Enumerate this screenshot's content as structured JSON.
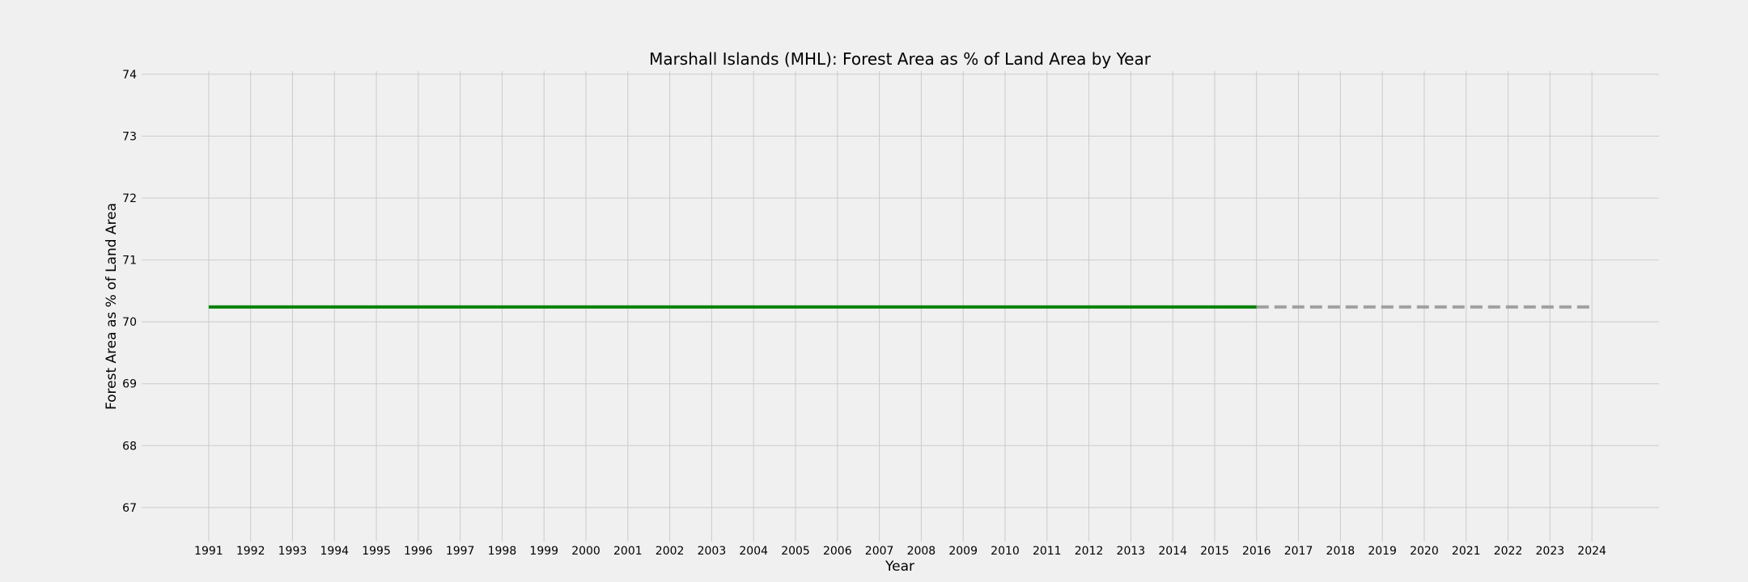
{
  "chart_data": {
    "type": "line",
    "title": "Marshall Islands (MHL): Forest Area as % of Land Area by Year",
    "xlabel": "Year",
    "ylabel": "Forest Area as % of Land Area",
    "xlim": [
      1989.4,
      2025.6
    ],
    "ylim": [
      66.45,
      74.05
    ],
    "x_ticks": [
      1991,
      1992,
      1993,
      1994,
      1995,
      1996,
      1997,
      1998,
      1999,
      2000,
      2001,
      2002,
      2003,
      2004,
      2005,
      2006,
      2007,
      2008,
      2009,
      2010,
      2011,
      2012,
      2013,
      2014,
      2015,
      2016,
      2017,
      2018,
      2019,
      2020,
      2021,
      2022,
      2023,
      2024
    ],
    "y_ticks": [
      67,
      68,
      69,
      70,
      71,
      72,
      73,
      74
    ],
    "grid": true,
    "series": [
      {
        "style": "solid",
        "color": "#008000",
        "x": [
          1991,
          1992,
          1993,
          1994,
          1995,
          1996,
          1997,
          1998,
          1999,
          2000,
          2001,
          2002,
          2003,
          2004,
          2005,
          2006,
          2007,
          2008,
          2009,
          2010,
          2011,
          2012,
          2013,
          2014,
          2015,
          2016
        ],
        "y": [
          70.24,
          70.24,
          70.24,
          70.24,
          70.24,
          70.24,
          70.24,
          70.24,
          70.24,
          70.24,
          70.24,
          70.24,
          70.24,
          70.24,
          70.24,
          70.24,
          70.24,
          70.24,
          70.24,
          70.24,
          70.24,
          70.24,
          70.24,
          70.24,
          70.24,
          70.24
        ]
      },
      {
        "style": "dashed",
        "color": "#a0a0a0",
        "x": [
          2016,
          2017,
          2018,
          2019,
          2020,
          2021,
          2022,
          2023,
          2024
        ],
        "y": [
          70.24,
          70.24,
          70.24,
          70.24,
          70.24,
          70.24,
          70.24,
          70.24,
          70.24
        ]
      }
    ]
  }
}
